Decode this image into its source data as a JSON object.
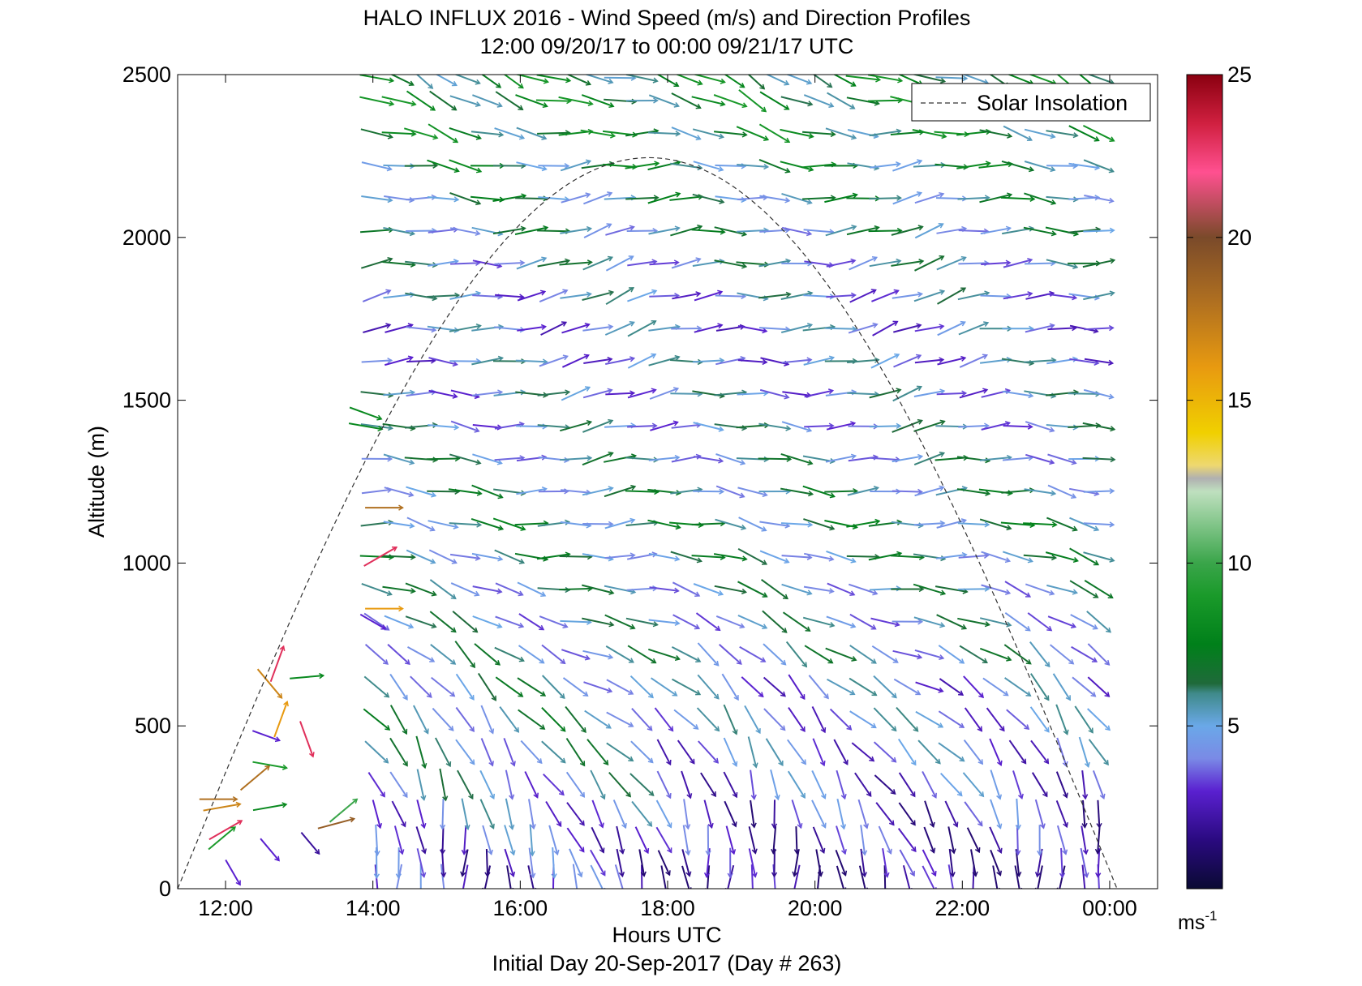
{
  "chart_data": {
    "type": "quiver",
    "title": "HALO INFLUX 2016 - Wind Speed (m/s) and Direction Profiles",
    "subtitle": "12:00 09/20/17 to 00:00 09/21/17  UTC",
    "xlabel": "Hours UTC",
    "footer": "Initial Day 20-Sep-2017 (Day # 263)",
    "ylabel": "Altitude (m)",
    "xlim": [
      11.35,
      24.65
    ],
    "ylim": [
      0,
      2500
    ],
    "x_ticks": [
      {
        "value": 12,
        "label": "12:00"
      },
      {
        "value": 14,
        "label": "14:00"
      },
      {
        "value": 16,
        "label": "16:00"
      },
      {
        "value": 18,
        "label": "18:00"
      },
      {
        "value": 20,
        "label": "20:00"
      },
      {
        "value": 22,
        "label": "22:00"
      },
      {
        "value": 24,
        "label": "00:00"
      }
    ],
    "y_ticks": [
      {
        "value": 0,
        "label": "0"
      },
      {
        "value": 500,
        "label": "500"
      },
      {
        "value": 1000,
        "label": "1000"
      },
      {
        "value": 1500,
        "label": "1500"
      },
      {
        "value": 2000,
        "label": "2000"
      },
      {
        "value": 2500,
        "label": "2500"
      }
    ],
    "colorbar": {
      "range": [
        0,
        25
      ],
      "unit_label": "ms",
      "unit_exponent": "-1",
      "ticks": [
        {
          "value": 5,
          "label": "5"
        },
        {
          "value": 10,
          "label": "10"
        },
        {
          "value": 15,
          "label": "15"
        },
        {
          "value": 20,
          "label": "20"
        },
        {
          "value": 25,
          "label": "25"
        }
      ],
      "stops": [
        {
          "value": 0,
          "color": "#0a0a33"
        },
        {
          "value": 1.5,
          "color": "#2a0a80"
        },
        {
          "value": 3,
          "color": "#5a20d0"
        },
        {
          "value": 4,
          "color": "#7a8ae6"
        },
        {
          "value": 5,
          "color": "#6aa8e8"
        },
        {
          "value": 6,
          "color": "#3f8a8a"
        },
        {
          "value": 6.3,
          "color": "#1f6a3a"
        },
        {
          "value": 7.5,
          "color": "#00801a"
        },
        {
          "value": 9,
          "color": "#1a9a2a"
        },
        {
          "value": 10,
          "color": "#3aa54a"
        },
        {
          "value": 12.2,
          "color": "#bfe0bf"
        },
        {
          "value": 12.6,
          "color": "#b0b0b0"
        },
        {
          "value": 13,
          "color": "#eed870"
        },
        {
          "value": 14,
          "color": "#f0d000"
        },
        {
          "value": 16,
          "color": "#e89a10"
        },
        {
          "value": 18,
          "color": "#b07020"
        },
        {
          "value": 20,
          "color": "#7a4a2a"
        },
        {
          "value": 22,
          "color": "#ff5090"
        },
        {
          "value": 23.5,
          "color": "#d02040"
        },
        {
          "value": 25,
          "color": "#8a0010"
        }
      ]
    },
    "legend": {
      "label": "Solar Insolation",
      "position": "top-right",
      "style": "dashed"
    },
    "solar_insolation": {
      "sunrise_hour": 11.35,
      "sunset_hour": 24.1,
      "peak_hour": 17.75,
      "peak_altitude": 2245
    },
    "wind_profiles": {
      "encoding": "direction in degrees clockwise from north, speed in m/s",
      "times": [
        14.05,
        14.35,
        14.65,
        14.95,
        15.25,
        15.55,
        15.85,
        16.15,
        16.45,
        16.75,
        17.05,
        17.35,
        17.65,
        17.95,
        18.25,
        18.55,
        18.85,
        19.15,
        19.45,
        19.75,
        20.05,
        20.35,
        20.65,
        20.95,
        21.25,
        21.55,
        21.85,
        22.15,
        22.45,
        22.75,
        23.05,
        23.35,
        23.65,
        23.85
      ],
      "altitudes": [
        30,
        80,
        150,
        230,
        320,
        420,
        520,
        620,
        720,
        820,
        920,
        1020,
        1120,
        1220,
        1320,
        1420,
        1520,
        1620,
        1720,
        1820,
        1920,
        2020,
        2120,
        2220,
        2320,
        2420,
        2490
      ],
      "profile_speed": [
        {
          "altitude": 30,
          "speed": 2.8,
          "direction": 175
        },
        {
          "altitude": 80,
          "speed": 3.0,
          "direction": 170
        },
        {
          "altitude": 150,
          "speed": 3.6,
          "direction": 165
        },
        {
          "altitude": 230,
          "speed": 4.2,
          "direction": 160
        },
        {
          "altitude": 320,
          "speed": 4.7,
          "direction": 152
        },
        {
          "altitude": 420,
          "speed": 5.2,
          "direction": 145
        },
        {
          "altitude": 520,
          "speed": 5.5,
          "direction": 138
        },
        {
          "altitude": 620,
          "speed": 5.4,
          "direction": 130
        },
        {
          "altitude": 720,
          "speed": 5.2,
          "direction": 122
        },
        {
          "altitude": 820,
          "speed": 5.0,
          "direction": 112
        },
        {
          "altitude": 920,
          "speed": 5.2,
          "direction": 105
        },
        {
          "altitude": 1020,
          "speed": 5.6,
          "direction": 98
        },
        {
          "altitude": 1120,
          "speed": 6.0,
          "direction": 95
        },
        {
          "altitude": 1220,
          "speed": 5.6,
          "direction": 92
        },
        {
          "altitude": 1320,
          "speed": 5.2,
          "direction": 90
        },
        {
          "altitude": 1420,
          "speed": 4.8,
          "direction": 88
        },
        {
          "altitude": 1520,
          "speed": 4.6,
          "direction": 85
        },
        {
          "altitude": 1620,
          "speed": 4.4,
          "direction": 82
        },
        {
          "altitude": 1720,
          "speed": 4.2,
          "direction": 80
        },
        {
          "altitude": 1820,
          "speed": 4.5,
          "direction": 80
        },
        {
          "altitude": 1920,
          "speed": 5.0,
          "direction": 82
        },
        {
          "altitude": 2020,
          "speed": 5.5,
          "direction": 85
        },
        {
          "altitude": 2120,
          "speed": 5.8,
          "direction": 88
        },
        {
          "altitude": 2220,
          "speed": 6.4,
          "direction": 92
        },
        {
          "altitude": 2320,
          "speed": 7.0,
          "direction": 100
        },
        {
          "altitude": 2420,
          "speed": 7.2,
          "direction": 108
        },
        {
          "altitude": 2490,
          "speed": 7.0,
          "direction": 112
        }
      ],
      "early_scattered": [
        {
          "time": 11.9,
          "altitude": 275,
          "speed": 18,
          "direction": 90
        },
        {
          "time": 11.95,
          "altitude": 250,
          "speed": 17,
          "direction": 80
        },
        {
          "time": 12.0,
          "altitude": 180,
          "speed": 23,
          "direction": 60
        },
        {
          "time": 11.95,
          "altitude": 155,
          "speed": 9,
          "direction": 50
        },
        {
          "time": 12.1,
          "altitude": 50,
          "speed": 3,
          "direction": 150
        },
        {
          "time": 12.4,
          "altitude": 340,
          "speed": 18,
          "direction": 50
        },
        {
          "time": 12.55,
          "altitude": 470,
          "speed": 3,
          "direction": 110
        },
        {
          "time": 12.6,
          "altitude": 630,
          "speed": 17,
          "direction": 140
        },
        {
          "time": 12.7,
          "altitude": 690,
          "speed": 23,
          "direction": 20
        },
        {
          "time": 12.75,
          "altitude": 520,
          "speed": 16,
          "direction": 20
        },
        {
          "time": 12.6,
          "altitude": 380,
          "speed": 9,
          "direction": 100
        },
        {
          "time": 12.6,
          "altitude": 250,
          "speed": 8,
          "direction": 80
        },
        {
          "time": 12.6,
          "altitude": 120,
          "speed": 3,
          "direction": 140
        },
        {
          "time": 13.1,
          "altitude": 460,
          "speed": 23,
          "direction": 160
        },
        {
          "time": 13.1,
          "altitude": 650,
          "speed": 8,
          "direction": 85
        },
        {
          "time": 13.15,
          "altitude": 140,
          "speed": 2,
          "direction": 140
        },
        {
          "time": 13.5,
          "altitude": 200,
          "speed": 19,
          "direction": 75
        },
        {
          "time": 13.6,
          "altitude": 240,
          "speed": 10,
          "direction": 50
        },
        {
          "time": 13.9,
          "altitude": 1460,
          "speed": 8,
          "direction": 110
        },
        {
          "time": 13.9,
          "altitude": 1420,
          "speed": 8,
          "direction": 100
        },
        {
          "time": 14.1,
          "altitude": 1020,
          "speed": 23,
          "direction": 60
        },
        {
          "time": 14.15,
          "altitude": 1170,
          "speed": 18,
          "direction": 90
        },
        {
          "time": 14.15,
          "altitude": 860,
          "speed": 16,
          "direction": 90
        },
        {
          "time": 14.0,
          "altitude": 820,
          "speed": 3,
          "direction": 120
        }
      ]
    }
  }
}
